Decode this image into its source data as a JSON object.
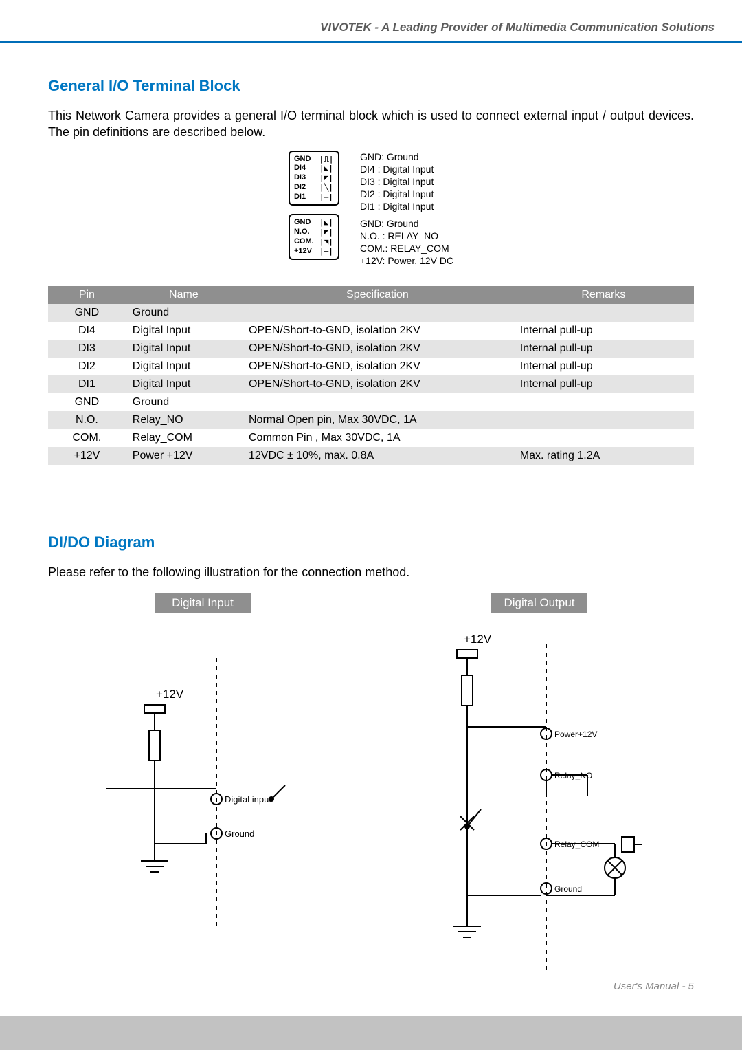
{
  "header": {
    "text": "VIVOTEK - A Leading Provider of Multimedia Communication Solutions",
    "underline_color": "#006db8",
    "text_color": "#5b5b5b"
  },
  "section1": {
    "title": "General I/O Terminal Block",
    "title_color": "#0077c2",
    "intro": "This Network Camera provides a general I/O terminal block which is used to connect external input / output devices. The pin definitions are described below."
  },
  "terminal_block": {
    "block1_labels": [
      "GND",
      "DI4",
      "DI3",
      "DI2",
      "DI1"
    ],
    "block2_labels": [
      "GND",
      "N.O.",
      "COM.",
      "+12V"
    ],
    "legend_group1": [
      "GND: Ground",
      "DI4 : Digital Input",
      "DI3 : Digital Input",
      "DI2 : Digital Input",
      "DI1 : Digital Input"
    ],
    "legend_group2": [
      "GND: Ground",
      "N.O. : RELAY_NO",
      "COM.: RELAY_COM",
      "+12V: Power, 12V DC"
    ]
  },
  "spec_table": {
    "header_bg": "#8f8f8f",
    "header_fg": "#ffffff",
    "alt_bg": "#e4e4e4",
    "columns": [
      "Pin",
      "Name",
      "Specification",
      "Remarks"
    ],
    "rows": [
      {
        "pin": "GND",
        "name": "Ground",
        "spec": "",
        "rem": "",
        "alt": true
      },
      {
        "pin": "DI4",
        "name": "Digital Input",
        "spec": "OPEN/Short-to-GND, isolation 2KV",
        "rem": "Internal pull-up",
        "alt": false
      },
      {
        "pin": "DI3",
        "name": "Digital Input",
        "spec": "OPEN/Short-to-GND, isolation 2KV",
        "rem": "Internal pull-up",
        "alt": true
      },
      {
        "pin": "DI2",
        "name": "Digital Input",
        "spec": "OPEN/Short-to-GND, isolation 2KV",
        "rem": "Internal pull-up",
        "alt": false
      },
      {
        "pin": "DI1",
        "name": "Digital Input",
        "spec": "OPEN/Short-to-GND, isolation 2KV",
        "rem": "Internal pull-up",
        "alt": true
      },
      {
        "pin": "GND",
        "name": "Ground",
        "spec": "",
        "rem": "",
        "alt": false
      },
      {
        "pin": "N.O.",
        "name": "Relay_NO",
        "spec": "Normal Open pin, Max 30VDC, 1A",
        "rem": "",
        "alt": true
      },
      {
        "pin": "COM.",
        "name": "Relay_COM",
        "spec": "Common Pin , Max 30VDC, 1A",
        "rem": "",
        "alt": false
      },
      {
        "pin": "+12V",
        "name": "Power +12V",
        "spec": "12VDC ± 10%, max. 0.8A",
        "rem": "Max. rating 1.2A",
        "alt": true
      }
    ]
  },
  "section2": {
    "title": "DI/DO Diagram",
    "title_color": "#0077c2",
    "intro": "Please refer to the following illustration for the connection method."
  },
  "diagrams": {
    "di": {
      "header": "Digital Input",
      "header_bg": "#8f8f8f",
      "labels": {
        "v12": "+12V",
        "digital_input": "Digital input",
        "ground": "Ground"
      }
    },
    "do": {
      "header": "Digital Output",
      "header_bg": "#8f8f8f",
      "labels": {
        "v12": "+12V",
        "power12": "Power+12V",
        "relay_no": "Relay_NO",
        "relay_com": "Relay_COM",
        "ground": "Ground"
      }
    },
    "stroke": "#000000",
    "dash": "6,6"
  },
  "footer": {
    "text": "User's Manual - 5",
    "color": "#888888"
  }
}
